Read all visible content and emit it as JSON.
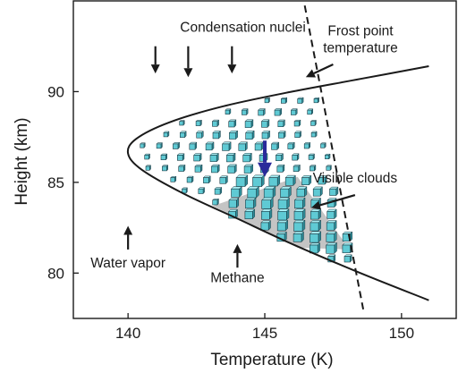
{
  "chart_data": {
    "type": "line",
    "title": "",
    "xlabel": "Temperature (K)",
    "ylabel": "Height (km)",
    "xlim": [
      138,
      152
    ],
    "ylim": [
      77.5,
      95
    ],
    "xticks": [
      140,
      145,
      150
    ],
    "yticks": [
      80,
      85,
      90
    ],
    "xtick_labels": [
      "140",
      "145",
      "150"
    ],
    "ytick_labels": [
      "80",
      "85",
      "90"
    ],
    "grid": false,
    "series": [
      {
        "kind": "condensation-curve",
        "style": "solid",
        "x": [
          151.0,
          148.5,
          146.0,
          143.5,
          141.5,
          140.3,
          140.0,
          140.5,
          142.0,
          144.0,
          146.0,
          148.5,
          151.0
        ],
        "y": [
          91.4,
          90.7,
          90.0,
          89.2,
          88.3,
          87.4,
          86.6,
          85.7,
          84.4,
          83.0,
          81.6,
          80.0,
          78.5
        ]
      },
      {
        "kind": "frost-point",
        "style": "dashed",
        "x": [
          146.3,
          148.6
        ],
        "y": [
          96.0,
          78.0
        ]
      }
    ],
    "annotations": [
      {
        "text": "Condensation nuclei",
        "at": [
          144.2,
          93.3
        ],
        "arrows": [
          {
            "from": [
              141.0,
              92.5
            ],
            "to": [
              141.0,
              91.0
            ]
          },
          {
            "from": [
              142.2,
              92.5
            ],
            "to": [
              142.2,
              90.8
            ]
          },
          {
            "from": [
              143.8,
              92.5
            ],
            "to": [
              143.8,
              91.0
            ]
          }
        ]
      },
      {
        "text_lines": [
          "Frost point",
          "temperature"
        ],
        "at": [
          148.5,
          93.1
        ],
        "arrows": [
          {
            "from": [
              147.5,
              91.5
            ],
            "to": [
              146.5,
              90.8
            ]
          }
        ]
      },
      {
        "text": "Visible clouds",
        "at": [
          148.3,
          85.0
        ],
        "arrows": [
          {
            "from": [
              148.3,
              84.3
            ],
            "to": [
              146.7,
              83.6
            ]
          }
        ]
      },
      {
        "text": "Water vapor",
        "at": [
          140.0,
          80.3
        ],
        "arrows": [
          {
            "from": [
              140.0,
              81.3
            ],
            "to": [
              140.0,
              82.6
            ]
          }
        ]
      },
      {
        "text": "Methane",
        "at": [
          144.0,
          79.5
        ],
        "arrows": [
          {
            "from": [
              144.0,
              80.3
            ],
            "to": [
              144.0,
              81.6
            ]
          }
        ]
      }
    ],
    "highlight_arrow": {
      "color": "#2a2a9a",
      "from": [
        145.0,
        87.3
      ],
      "to": [
        145.0,
        85.3
      ]
    },
    "visible_cloud_region": {
      "color": "#c4c4c4",
      "x": [
        143.1,
        146.2,
        148.1,
        146.2
      ],
      "y": [
        83.7,
        85.3,
        81.3,
        81.4
      ]
    },
    "particle_color": "#5fcad4"
  }
}
